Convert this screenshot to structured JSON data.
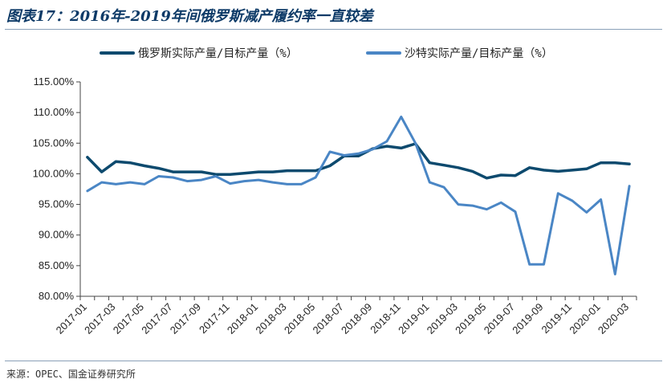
{
  "title": "图表17：2016年-2019年间俄罗斯减产履约率一直较差",
  "source": "来源：OPEC、国金证券研究所",
  "chart_data": {
    "type": "line",
    "title": "图表17：2016年-2019年间俄罗斯减产履约率一直较差",
    "xlabel": "",
    "ylabel": "",
    "ylim": [
      80,
      115
    ],
    "yticks": [
      "80.00%",
      "85.00%",
      "90.00%",
      "95.00%",
      "100.00%",
      "105.00%",
      "110.00%",
      "115.00%"
    ],
    "grid": false,
    "legend": "top",
    "x": [
      "2017-01",
      "2017-02",
      "2017-03",
      "2017-04",
      "2017-05",
      "2017-06",
      "2017-07",
      "2017-08",
      "2017-09",
      "2017-10",
      "2017-11",
      "2017-12",
      "2018-01",
      "2018-02",
      "2018-03",
      "2018-04",
      "2018-05",
      "2018-06",
      "2018-07",
      "2018-08",
      "2018-09",
      "2018-10",
      "2018-11",
      "2018-12",
      "2019-01",
      "2019-02",
      "2019-03",
      "2019-04",
      "2019-05",
      "2019-06",
      "2019-07",
      "2019-08",
      "2019-09",
      "2019-10",
      "2019-11",
      "2019-12",
      "2020-01",
      "2020-02",
      "2020-03"
    ],
    "xtick_labels": [
      "2017-01",
      "2017-03",
      "2017-05",
      "2017-07",
      "2017-09",
      "2017-11",
      "2018-01",
      "2018-03",
      "2018-05",
      "2018-07",
      "2018-09",
      "2018-11",
      "2019-01",
      "2019-03",
      "2019-05",
      "2019-07",
      "2019-09",
      "2019-11",
      "2020-01",
      "2020-03"
    ],
    "series": [
      {
        "name": "俄罗斯实际产量/目标产量（%）",
        "color": "#0d4a6e",
        "values": [
          102.7,
          100.3,
          102.0,
          101.8,
          101.3,
          100.9,
          100.3,
          100.3,
          100.3,
          99.9,
          99.9,
          100.1,
          100.3,
          100.3,
          100.5,
          100.5,
          100.5,
          101.3,
          102.9,
          102.9,
          104.1,
          104.5,
          104.2,
          104.9,
          101.8,
          101.4,
          101.0,
          100.4,
          99.3,
          99.8,
          99.7,
          101.0,
          100.6,
          100.4,
          100.6,
          100.8,
          101.8,
          101.8,
          101.6
        ]
      },
      {
        "name": "沙特实际产量/目标产量（%）",
        "color": "#4a86c5",
        "values": [
          97.2,
          98.6,
          98.3,
          98.6,
          98.3,
          99.6,
          99.4,
          98.8,
          99.0,
          99.6,
          98.4,
          98.8,
          99.0,
          98.6,
          98.3,
          98.3,
          99.4,
          103.6,
          103.0,
          103.3,
          104.0,
          105.3,
          109.3,
          105.0,
          98.6,
          97.8,
          95.0,
          94.8,
          94.2,
          95.3,
          93.8,
          85.2,
          85.2,
          96.8,
          95.6,
          93.7,
          95.8,
          83.6,
          98.0
        ]
      }
    ]
  }
}
